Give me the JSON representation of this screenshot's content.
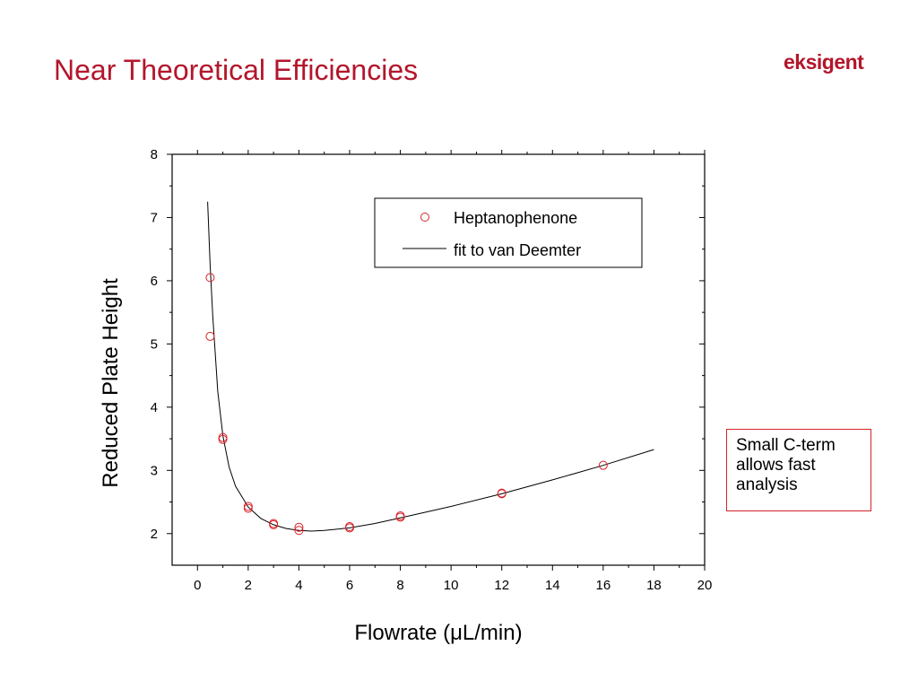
{
  "slide": {
    "title": "Near Theoretical Efficiencies",
    "logo_text": "eksigent",
    "callout_text": "Small C-term allows fast analysis"
  },
  "colors": {
    "title": "#b3162b",
    "marker": "#d8232a",
    "callout_border": "#d8232a",
    "fit_line": "#000000"
  },
  "chart_data": {
    "type": "scatter",
    "title": "",
    "xlabel": "Flowrate (μL/min)",
    "ylabel": "Reduced Plate Height",
    "xlim": [
      -1,
      20
    ],
    "ylim": [
      1.5,
      8
    ],
    "xticks": [
      0,
      2,
      4,
      6,
      8,
      10,
      12,
      14,
      16,
      18,
      20
    ],
    "yticks": [
      2,
      3,
      4,
      5,
      6,
      7,
      8
    ],
    "grid": false,
    "legend_position": "top-right",
    "series": [
      {
        "name": "Heptanophenone",
        "kind": "scatter",
        "marker": "open-circle",
        "points": [
          [
            0.5,
            6.05
          ],
          [
            0.5,
            5.12
          ],
          [
            1.0,
            3.52
          ],
          [
            1.0,
            3.49
          ],
          [
            2.0,
            2.43
          ],
          [
            2.0,
            2.4
          ],
          [
            3.0,
            2.16
          ],
          [
            3.0,
            2.14
          ],
          [
            4.0,
            2.1
          ],
          [
            4.0,
            2.05
          ],
          [
            6.0,
            2.11
          ],
          [
            6.0,
            2.09
          ],
          [
            8.0,
            2.28
          ],
          [
            8.0,
            2.26
          ],
          [
            12.0,
            2.64
          ],
          [
            12.0,
            2.63
          ],
          [
            16.0,
            3.08
          ]
        ]
      },
      {
        "name": "fit to van Deemter",
        "kind": "line",
        "points": [
          [
            0.4,
            7.25
          ],
          [
            0.5,
            6.25
          ],
          [
            0.6,
            5.45
          ],
          [
            0.8,
            4.25
          ],
          [
            1.0,
            3.55
          ],
          [
            1.25,
            3.05
          ],
          [
            1.5,
            2.75
          ],
          [
            2.0,
            2.42
          ],
          [
            2.5,
            2.24
          ],
          [
            3.0,
            2.14
          ],
          [
            3.5,
            2.08
          ],
          [
            4.0,
            2.05
          ],
          [
            4.5,
            2.04
          ],
          [
            5.0,
            2.05
          ],
          [
            6.0,
            2.09
          ],
          [
            7.0,
            2.16
          ],
          [
            8.0,
            2.25
          ],
          [
            10.0,
            2.43
          ],
          [
            12.0,
            2.63
          ],
          [
            14.0,
            2.85
          ],
          [
            16.0,
            3.08
          ],
          [
            18.0,
            3.33
          ]
        ]
      }
    ]
  }
}
